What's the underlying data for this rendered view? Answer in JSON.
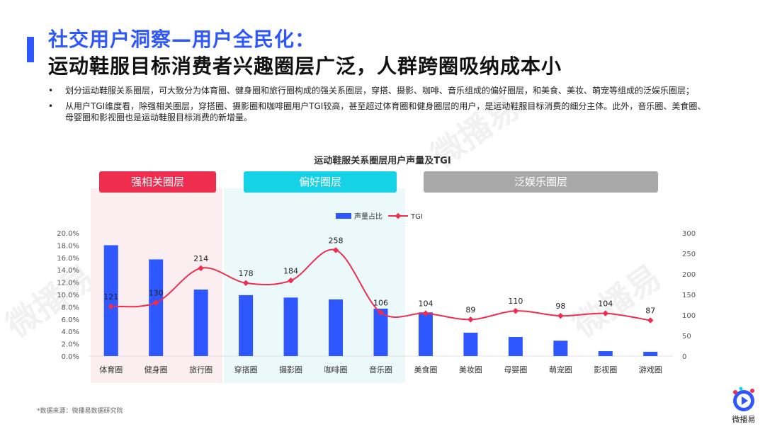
{
  "title": {
    "line1": "社交用户洞察—用户全民化：",
    "line2": "运动鞋服目标消费者兴趣圈层广泛，人群跨圈吸纳成本小"
  },
  "bullets": [
    "划分运动鞋服关系圈层，可大致分为体育圈、健身圈和旅行圈构成的强关系圈层，穿搭、摄影、咖啡、音乐组成的偏好圈层，和美食、美妆、萌宠等组成的泛娱乐圈层；",
    "从用户TGI维度看，除强相关圈层，穿搭圈、摄影圈和咖啡圈用户TGI较高，甚至超过体育圈和健身圈层的用户，是运动鞋服目标消费的细分主体。此外，音乐圈、美食圈、母婴圈和影视圈也是运动鞋服目标消费的新增量。"
  ],
  "bullet_symbol": "•",
  "groups": {
    "strong": "强相关圈层",
    "preference": "偏好圈层",
    "entertainment": "泛娱乐圈层"
  },
  "source": "*数据来源：微播易数据研究院",
  "logo": {
    "text": "微播易",
    "icon": "play-logo-icon"
  },
  "watermark_text": "微播易",
  "colors": {
    "accent": "#2f57ff",
    "bar": "#2f57ff",
    "line": "#ef2d4f",
    "strong": "#ef2d4f",
    "preference": "#15d2e7",
    "entertainment": "#a8a8a8"
  },
  "chart_data": {
    "type": "bar",
    "title": "运动鞋服关系圈层用户声量及TGI",
    "categories": [
      "体育圈",
      "健身圈",
      "旅行圈",
      "穿搭圈",
      "摄影圈",
      "咖啡圈",
      "音乐圈",
      "美食圈",
      "美妆圈",
      "母婴圈",
      "萌宠圈",
      "影视圈",
      "游戏圈"
    ],
    "series": [
      {
        "name": "声量占比",
        "type": "bar",
        "axis": "left",
        "values": [
          18.0,
          15.7,
          10.8,
          9.9,
          9.5,
          9.2,
          7.7,
          7.1,
          3.8,
          3.1,
          2.5,
          0.8,
          0.7
        ]
      },
      {
        "name": "TGI",
        "type": "line",
        "axis": "right",
        "values": [
          121,
          130,
          214,
          178,
          184,
          258,
          106,
          104,
          89,
          110,
          98,
          104,
          87
        ]
      }
    ],
    "y_left": {
      "min": 0,
      "max": 20,
      "step": 2,
      "format": "percent",
      "ticks": [
        "0.0%",
        "2.0%",
        "4.0%",
        "6.0%",
        "8.0%",
        "10.0%",
        "12.0%",
        "14.0%",
        "16.0%",
        "18.0%",
        "20.0%"
      ]
    },
    "y_right": {
      "min": 0,
      "max": 300,
      "step": 50,
      "ticks": [
        "0",
        "50",
        "100",
        "150",
        "200",
        "250",
        "300"
      ]
    },
    "legend_placement": "top-center",
    "grid": false
  }
}
